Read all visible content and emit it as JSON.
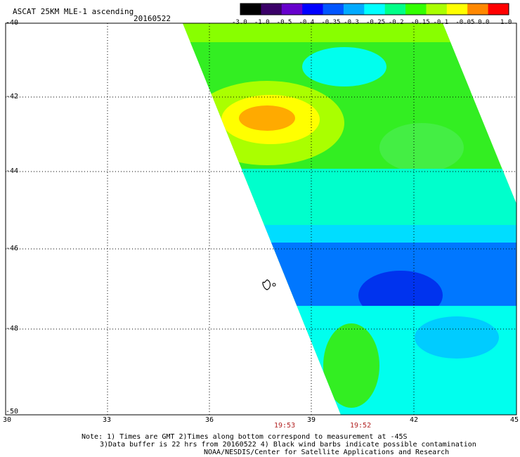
{
  "title": "ASCAT 25KM MLE-1 ascending",
  "date": "20160522",
  "colorbar": {
    "labels": [
      "-3.0",
      "-1.0",
      "-0.5",
      "-0.4",
      "-0.35",
      "-0.3",
      "-0.25",
      "-0.2",
      "-0.15",
      "-0.1",
      "-0.05",
      "0.0",
      "1.0"
    ],
    "colors": [
      "#000000",
      "#3a0068",
      "#6600cc",
      "#0000ff",
      "#0055ff",
      "#00aaff",
      "#00ffff",
      "#00ff88",
      "#33ff00",
      "#aaff00",
      "#ffff00",
      "#ff8800",
      "#ff0000"
    ]
  },
  "axes": {
    "lat_labels": [
      "-40",
      "-42",
      "-44",
      "-46",
      "-48",
      "-50"
    ],
    "lon_labels": [
      "30",
      "33",
      "36",
      "39",
      "42",
      "45"
    ]
  },
  "times": [
    "19:53",
    "19:52"
  ],
  "notes": {
    "line1": "Note: 1) Times are GMT 2)Times along bottom correspond to measurement at -45S",
    "line2": "3)Data buffer is 22 hrs from 20160522 4) Black wind barbs indicate possible contamination",
    "line3": "NOAA/NESDIS/Center for Satellite Applications and Research"
  },
  "palette": {
    "yellow": "#ffff00",
    "lime": "#88ff00",
    "green": "#33ee22",
    "cyan": "#00ffee",
    "blue": "#0066ff",
    "orange": "#ff9900"
  }
}
